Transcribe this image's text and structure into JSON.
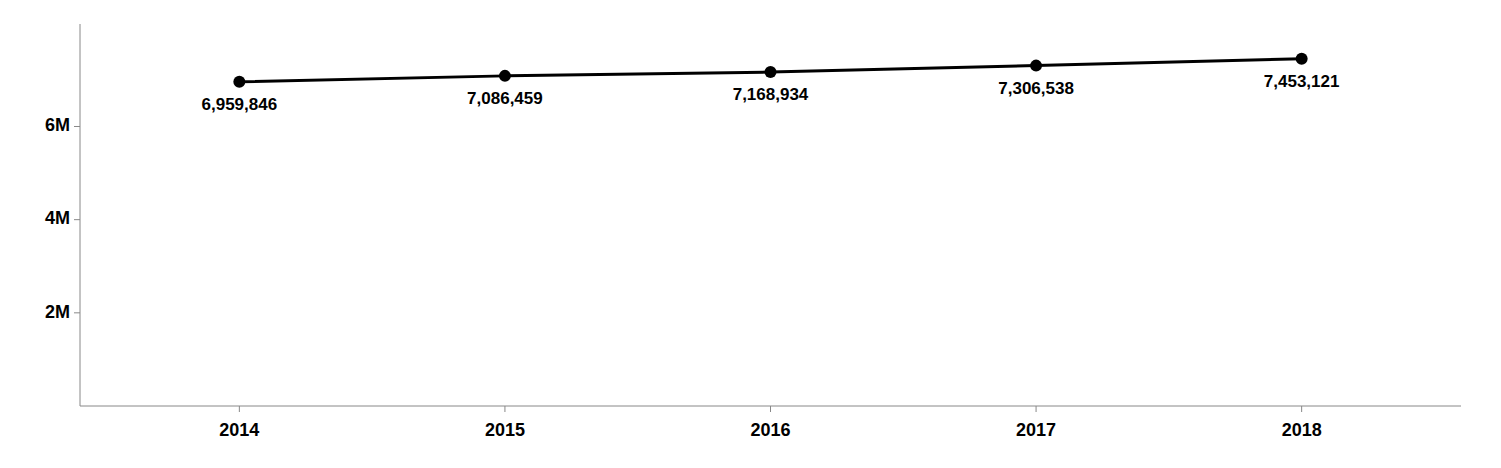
{
  "chart_data": {
    "type": "line",
    "x": [
      2014,
      2015,
      2016,
      2017,
      2018
    ],
    "values": [
      6959846,
      7086459,
      7168934,
      7306538,
      7453121
    ],
    "value_labels": [
      "6,959,846",
      "7,086,459",
      "7,168,934",
      "7,306,538",
      "7,453,121"
    ],
    "data_labels": true,
    "color": "#000000",
    "marker": "circle",
    "xlim": [
      2013.4,
      2018.6
    ],
    "xticks": [
      2014,
      2015,
      2016,
      2017,
      2018
    ],
    "ylim": [
      0,
      8200000
    ],
    "yticks": [
      {
        "value": 2000000,
        "label": "2M"
      },
      {
        "value": 4000000,
        "label": "4M"
      },
      {
        "value": 6000000,
        "label": "6M"
      }
    ],
    "grid": false
  }
}
